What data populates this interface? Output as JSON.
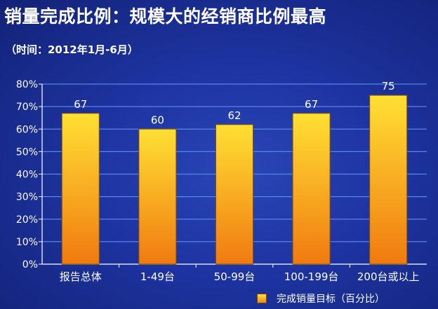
{
  "title": "销量完成比例：规模大的经销商比例最高",
  "subtitle": "（时间：2012年1月-6月）",
  "chart_data": {
    "type": "bar",
    "categories": [
      "报告总体",
      "1-49台",
      "50-99台",
      "100-199台",
      "200台或以上"
    ],
    "series": [
      {
        "name": "完成销量目标（百分比）",
        "values": [
          67,
          60,
          62,
          67,
          75
        ]
      }
    ],
    "data_labels": [
      "67",
      "60",
      "62",
      "67",
      "75"
    ],
    "ylim": [
      0,
      80
    ],
    "yticks": [
      "0%",
      "10%",
      "20%",
      "30%",
      "40%",
      "50%",
      "60%",
      "70%",
      "80%"
    ],
    "grid": true,
    "legend_position": "bottom-right",
    "colors": {
      "bar_top": "#ffe033",
      "bar_bottom": "#f07a10",
      "bar_edge": "#8a5200",
      "grid": "#5a84e6",
      "axis": "#ffffff"
    }
  }
}
